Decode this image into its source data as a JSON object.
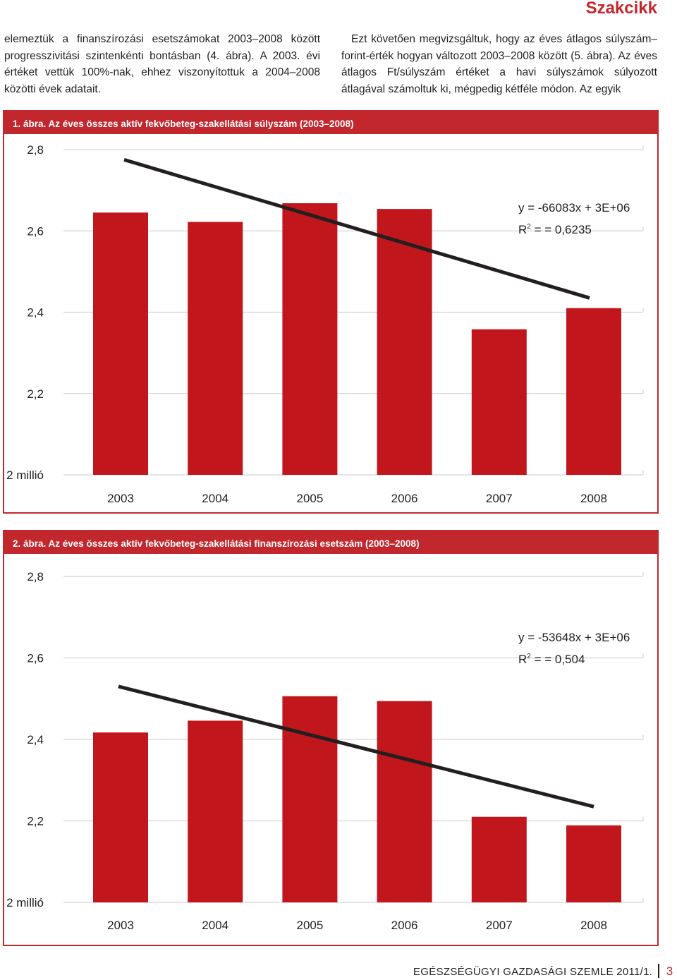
{
  "header": {
    "section": "Szakcikk"
  },
  "text": {
    "left": "elemeztük a finanszírozási esetszámokat 2003–2008 között progresszivitási szintenkénti bontásban (4. ábra). A 2003. évi értéket vettük 100%-nak, ehhez viszonyítottuk a 2004–2008 közötti évek adatait.",
    "right": "Ezt követően megvizsgáltuk, hogy az éves átlagos súlyszám–forint-érték hogyan változott 2003–2008 között (5. ábra). Az éves átlagos Ft/súlyszám értéket a havi súlyszámok súlyozott átlagával számoltuk ki, mégpedig kétféle módon. Az egyik"
  },
  "figures": [
    {
      "caption": "1. ábra. Az éves összes aktív fekvőbeteg-szakellátási súlyszám (2003–2008)",
      "equation": "y = -66083x + 3E+06",
      "r2_prefix": "R",
      "r2_sup": "2",
      "r2_value": " =  = 0,6235"
    },
    {
      "caption": "2. ábra. Az éves összes aktív fekvőbeteg-szakellátási finanszírozási esetszám (2003–2008)",
      "equation": "y = -53648x + 3E+06",
      "r2_prefix": "R",
      "r2_sup": "2",
      "r2_value": " =  = 0,504"
    }
  ],
  "chart_data": [
    {
      "type": "bar",
      "title": "1. ábra. Az éves összes aktív fekvőbeteg-szakellátási súlyszám (2003–2008)",
      "categories": [
        "2003",
        "2004",
        "2005",
        "2006",
        "2007",
        "2008"
      ],
      "values": [
        2.645,
        2.622,
        2.668,
        2.654,
        2.358,
        2.41
      ],
      "ylim": [
        2.0,
        2.8
      ],
      "yticks": [
        2.0,
        2.2,
        2.4,
        2.6,
        2.8
      ],
      "ytick_labels": [
        "2 millió",
        "2,2",
        "2,4",
        "2,6",
        "2,8"
      ],
      "trendline": {
        "start": 2.775,
        "end": 2.435
      },
      "grid": true,
      "bar_color": "#c1161c",
      "trend_color": "#231f20"
    },
    {
      "type": "bar",
      "title": "2. ábra. Az éves összes aktív fekvőbeteg-szakellátási finanszírozási esetszám (2003–2008)",
      "categories": [
        "2003",
        "2004",
        "2005",
        "2006",
        "2007",
        "2008"
      ],
      "values": [
        2.417,
        2.446,
        2.506,
        2.494,
        2.21,
        2.189
      ],
      "ylim": [
        2.0,
        2.8
      ],
      "yticks": [
        2.0,
        2.2,
        2.4,
        2.6,
        2.8
      ],
      "ytick_labels": [
        "2 millió",
        "2,2",
        "2,4",
        "2,6",
        "2,8"
      ],
      "trendline": {
        "start": 2.53,
        "end": 2.235
      },
      "grid": true,
      "bar_color": "#c1161c",
      "trend_color": "#231f20"
    }
  ],
  "footer": {
    "journal": "EGÉSZSÉGÜGYI GAZDASÁGI SZEMLE 2011/1.",
    "page": "3"
  }
}
